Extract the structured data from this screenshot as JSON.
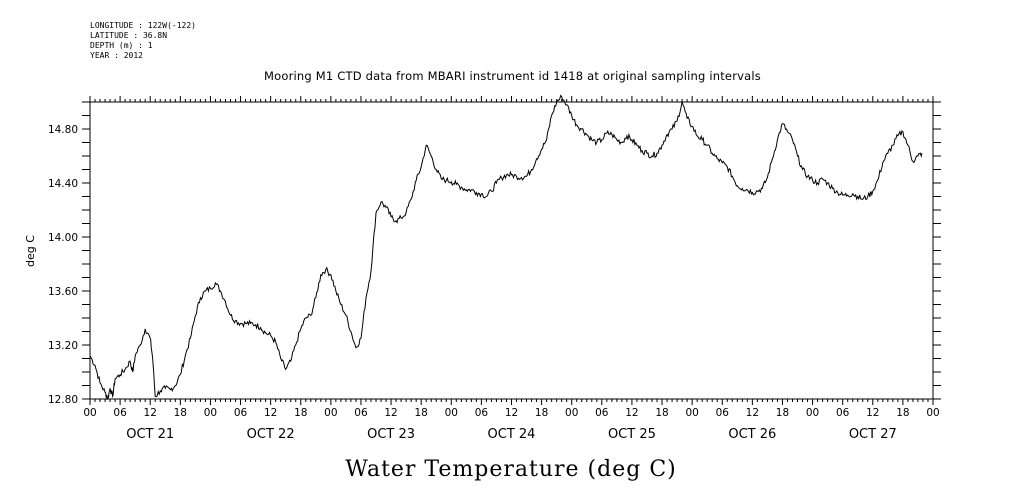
{
  "meta": {
    "longitude": "LONGITUDE : 122W(-122)",
    "latitude": "LATITUDE : 36.8N",
    "depth": "DEPTH (m) : 1",
    "year": "YEAR : 2012"
  },
  "chart_data": {
    "type": "line",
    "title": "Mooring M1 CTD data from MBARI instrument id 1418 at original sampling intervals",
    "xlabel": "Water Temperature (deg C)",
    "ylabel": "deg C",
    "ylim": [
      12.8,
      15.0
    ],
    "yticks": [
      "12.80",
      "13.20",
      "13.60",
      "14.00",
      "14.40",
      "14.80"
    ],
    "xlim_hours": [
      0,
      168
    ],
    "hour_tick_labels": [
      "00",
      "06",
      "12",
      "18",
      "00",
      "06",
      "12",
      "18",
      "00",
      "06",
      "12",
      "18",
      "00",
      "06",
      "12",
      "18",
      "00",
      "06",
      "12",
      "18",
      "00",
      "06",
      "12",
      "18",
      "00",
      "06",
      "12",
      "18",
      "00"
    ],
    "day_labels": [
      "OCT 21",
      "OCT 22",
      "OCT 23",
      "OCT 24",
      "OCT 25",
      "OCT 26",
      "OCT 27"
    ],
    "grid": false,
    "line_color": "#000000",
    "series": [
      {
        "values": [
          [
            0,
            13.12
          ],
          [
            1,
            13.05
          ],
          [
            2,
            12.92
          ],
          [
            3,
            12.85
          ],
          [
            3.5,
            12.8
          ],
          [
            4,
            12.88
          ],
          [
            4.5,
            12.82
          ],
          [
            5,
            12.95
          ],
          [
            6,
            12.98
          ],
          [
            7,
            13.02
          ],
          [
            8,
            13.08
          ],
          [
            8.5,
            13.0
          ],
          [
            9,
            13.12
          ],
          [
            10,
            13.2
          ],
          [
            11,
            13.32
          ],
          [
            12,
            13.25
          ],
          [
            12.5,
            13.1
          ],
          [
            13,
            12.82
          ],
          [
            14,
            12.86
          ],
          [
            15,
            12.88
          ],
          [
            16,
            12.87
          ],
          [
            17,
            12.9
          ],
          [
            18,
            12.98
          ],
          [
            19,
            13.12
          ],
          [
            20,
            13.25
          ],
          [
            21,
            13.42
          ],
          [
            22,
            13.55
          ],
          [
            23,
            13.6
          ],
          [
            24,
            13.62
          ],
          [
            25,
            13.66
          ],
          [
            26,
            13.6
          ],
          [
            27,
            13.52
          ],
          [
            28,
            13.42
          ],
          [
            29,
            13.38
          ],
          [
            30,
            13.36
          ],
          [
            31,
            13.36
          ],
          [
            32,
            13.36
          ],
          [
            33,
            13.35
          ],
          [
            34,
            13.33
          ],
          [
            35,
            13.29
          ],
          [
            36,
            13.27
          ],
          [
            37,
            13.22
          ],
          [
            38,
            13.1
          ],
          [
            39,
            13.02
          ],
          [
            40,
            13.08
          ],
          [
            41,
            13.2
          ],
          [
            42,
            13.32
          ],
          [
            43,
            13.4
          ],
          [
            44,
            13.42
          ],
          [
            45,
            13.55
          ],
          [
            46,
            13.72
          ],
          [
            47,
            13.76
          ],
          [
            48,
            13.72
          ],
          [
            49,
            13.6
          ],
          [
            50,
            13.5
          ],
          [
            51,
            13.42
          ],
          [
            52,
            13.3
          ],
          [
            53,
            13.18
          ],
          [
            54,
            13.25
          ],
          [
            55,
            13.55
          ],
          [
            56,
            13.75
          ],
          [
            57,
            14.18
          ],
          [
            58,
            14.26
          ],
          [
            59,
            14.22
          ],
          [
            60,
            14.15
          ],
          [
            61,
            14.12
          ],
          [
            62,
            14.14
          ],
          [
            63,
            14.18
          ],
          [
            64,
            14.28
          ],
          [
            65,
            14.42
          ],
          [
            66,
            14.52
          ],
          [
            67,
            14.68
          ],
          [
            68,
            14.6
          ],
          [
            69,
            14.5
          ],
          [
            70,
            14.43
          ],
          [
            71,
            14.42
          ],
          [
            72,
            14.41
          ],
          [
            73,
            14.39
          ],
          [
            74,
            14.37
          ],
          [
            75,
            14.35
          ],
          [
            76,
            14.35
          ],
          [
            77,
            14.33
          ],
          [
            78,
            14.32
          ],
          [
            79,
            14.3
          ],
          [
            80,
            14.34
          ],
          [
            81,
            14.4
          ],
          [
            82,
            14.44
          ],
          [
            83,
            14.46
          ],
          [
            84,
            14.46
          ],
          [
            85,
            14.45
          ],
          [
            86,
            14.44
          ],
          [
            87,
            14.45
          ],
          [
            88,
            14.5
          ],
          [
            89,
            14.58
          ],
          [
            90,
            14.65
          ],
          [
            91,
            14.72
          ],
          [
            92,
            14.9
          ],
          [
            93,
            15.0
          ],
          [
            94,
            15.04
          ],
          [
            95,
            14.98
          ],
          [
            96,
            14.9
          ],
          [
            97,
            14.83
          ],
          [
            98,
            14.8
          ],
          [
            99,
            14.76
          ],
          [
            100,
            14.72
          ],
          [
            101,
            14.7
          ],
          [
            102,
            14.72
          ],
          [
            103,
            14.77
          ],
          [
            104,
            14.76
          ],
          [
            105,
            14.72
          ],
          [
            106,
            14.7
          ],
          [
            107,
            14.75
          ],
          [
            108,
            14.72
          ],
          [
            109,
            14.68
          ],
          [
            110,
            14.64
          ],
          [
            111,
            14.62
          ],
          [
            112,
            14.6
          ],
          [
            113,
            14.62
          ],
          [
            114,
            14.68
          ],
          [
            115,
            14.76
          ],
          [
            116,
            14.8
          ],
          [
            117,
            14.86
          ],
          [
            118,
            15.0
          ],
          [
            119,
            14.88
          ],
          [
            120,
            14.82
          ],
          [
            121,
            14.75
          ],
          [
            122,
            14.72
          ],
          [
            123,
            14.68
          ],
          [
            124,
            14.62
          ],
          [
            125,
            14.58
          ],
          [
            126,
            14.55
          ],
          [
            127,
            14.52
          ],
          [
            128,
            14.45
          ],
          [
            129,
            14.38
          ],
          [
            130,
            14.36
          ],
          [
            131,
            14.35
          ],
          [
            132,
            14.33
          ],
          [
            133,
            14.34
          ],
          [
            134,
            14.36
          ],
          [
            135,
            14.44
          ],
          [
            136,
            14.58
          ],
          [
            137,
            14.72
          ],
          [
            138,
            14.84
          ],
          [
            139,
            14.78
          ],
          [
            140,
            14.72
          ],
          [
            141,
            14.6
          ],
          [
            142,
            14.5
          ],
          [
            143,
            14.45
          ],
          [
            144,
            14.42
          ],
          [
            145,
            14.4
          ],
          [
            146,
            14.43
          ],
          [
            147,
            14.4
          ],
          [
            148,
            14.36
          ],
          [
            149,
            14.33
          ],
          [
            150,
            14.31
          ],
          [
            151,
            14.31
          ],
          [
            152,
            14.32
          ],
          [
            153,
            14.3
          ],
          [
            154,
            14.28
          ],
          [
            155,
            14.3
          ],
          [
            156,
            14.34
          ],
          [
            157,
            14.42
          ],
          [
            158,
            14.55
          ],
          [
            159,
            14.62
          ],
          [
            160,
            14.68
          ],
          [
            161,
            14.75
          ],
          [
            162,
            14.78
          ],
          [
            163,
            14.68
          ],
          [
            164,
            14.56
          ],
          [
            165,
            14.6
          ],
          [
            165.8,
            14.62
          ]
        ]
      }
    ]
  }
}
